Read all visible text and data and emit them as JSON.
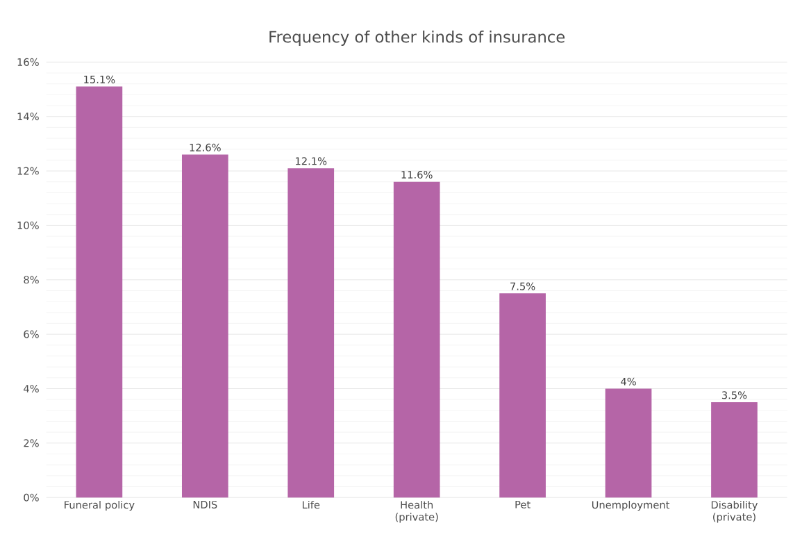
{
  "chart_data": {
    "type": "bar",
    "title": "Frequency of other kinds of insurance",
    "categories": [
      "Funeral policy",
      "NDIS",
      "Life",
      "Health (private)",
      "Pet",
      "Unemployment",
      "Disability (private)"
    ],
    "values": [
      15.1,
      12.6,
      12.1,
      11.6,
      7.5,
      4,
      3.5
    ],
    "value_labels": [
      "15.1%",
      "12.6%",
      "12.1%",
      "11.6%",
      "7.5%",
      "4%",
      "3.5%"
    ],
    "color": "#b565a7",
    "ylim": [
      0,
      16
    ],
    "yticks": [
      {
        "value": 0,
        "label": "0%"
      },
      {
        "value": 2,
        "label": "2%"
      },
      {
        "value": 4,
        "label": "4%"
      },
      {
        "value": 6,
        "label": "6%"
      },
      {
        "value": 8,
        "label": "8%"
      },
      {
        "value": 10,
        "label": "10%"
      },
      {
        "value": 12,
        "label": "12%"
      },
      {
        "value": 14,
        "label": "14%"
      },
      {
        "value": 16,
        "label": "16%"
      }
    ],
    "grid": "y"
  }
}
